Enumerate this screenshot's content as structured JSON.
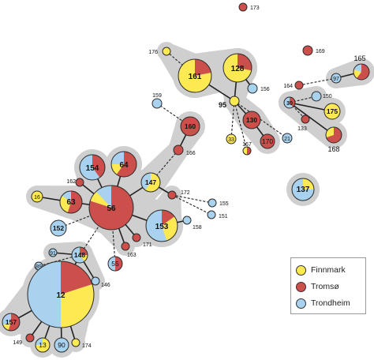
{
  "colors": {
    "finnmark": "#fde951",
    "tromso": "#cc4f4b",
    "trondheim": "#a9d2ef",
    "hull": "#cfcfcf",
    "edge": "#222222"
  },
  "legend": {
    "items": [
      {
        "key": "finnmark",
        "label": "Finnmark"
      },
      {
        "key": "tromso",
        "label": "Tromsø"
      },
      {
        "key": "trondheim",
        "label": "Trondheim"
      }
    ]
  },
  "nodes": [
    {
      "id": "173",
      "label": "173",
      "comp": {
        "tromso": 1
      }
    },
    {
      "id": "176",
      "label": "176",
      "comp": {
        "finnmark": 1
      }
    },
    {
      "id": "161",
      "label": "161",
      "comp": {
        "finnmark": 0.78,
        "tromso": 0.22
      }
    },
    {
      "id": "128",
      "label": "128",
      "comp": {
        "finnmark": 0.72,
        "tromso": 0.28
      }
    },
    {
      "id": "156",
      "label": "156",
      "comp": {
        "trondheim": 1
      }
    },
    {
      "id": "169",
      "label": "169",
      "comp": {
        "tromso": 1
      }
    },
    {
      "id": "165",
      "label": "165",
      "comp": {
        "tromso": 0.6,
        "finnmark": 0.2,
        "trondheim": 0.2
      }
    },
    {
      "id": "97",
      "label": "97",
      "comp": {
        "trondheim": 1
      }
    },
    {
      "id": "164",
      "label": "164",
      "comp": {
        "tromso": 1
      }
    },
    {
      "id": "150",
      "label": "150",
      "comp": {
        "trondheim": 1
      }
    },
    {
      "id": "30",
      "label": "30",
      "comp": {
        "tromso": 0.4,
        "trondheim": 0.6
      }
    },
    {
      "id": "175",
      "label": "175",
      "comp": {
        "finnmark": 1
      }
    },
    {
      "id": "133",
      "label": "133",
      "comp": {
        "tromso": 1
      }
    },
    {
      "id": "168",
      "label": "168",
      "comp": {
        "tromso": 0.7,
        "finnmark": 0.3
      }
    },
    {
      "id": "95",
      "label": "95",
      "comp": {
        "finnmark": 1
      }
    },
    {
      "id": "130",
      "label": "130",
      "comp": {
        "tromso": 1
      }
    },
    {
      "id": "170",
      "label": "170",
      "comp": {
        "tromso": 1
      }
    },
    {
      "id": "21",
      "label": "21",
      "comp": {
        "trondheim": 1
      }
    },
    {
      "id": "167",
      "label": "167",
      "comp": {
        "tromso": 0.5,
        "finnmark": 0.5
      }
    },
    {
      "id": "33",
      "label": "33",
      "comp": {
        "finnmark": 1
      }
    },
    {
      "id": "159",
      "label": "159",
      "comp": {
        "trondheim": 1
      }
    },
    {
      "id": "160",
      "label": "160",
      "comp": {
        "tromso": 1
      }
    },
    {
      "id": "166",
      "label": "166",
      "comp": {
        "tromso": 1
      }
    },
    {
      "id": "137",
      "label": "137",
      "comp": {
        "trondheim": 0.75,
        "finnmark": 0.25
      }
    },
    {
      "id": "154",
      "label": "154",
      "comp": {
        "tromso": 0.4,
        "trondheim": 0.6
      }
    },
    {
      "id": "64",
      "label": "64",
      "comp": {
        "tromso": 0.6,
        "trondheim": 0.25,
        "finnmark": 0.15
      }
    },
    {
      "id": "147",
      "label": "147",
      "comp": {
        "finnmark": 0.6,
        "trondheim": 0.4
      }
    },
    {
      "id": "162",
      "label": "162",
      "comp": {
        "tromso": 1
      }
    },
    {
      "id": "172",
      "label": "172",
      "comp": {
        "tromso": 1
      }
    },
    {
      "id": "155",
      "label": "155",
      "comp": {
        "trondheim": 1
      }
    },
    {
      "id": "151",
      "label": "151",
      "comp": {
        "trondheim": 1
      }
    },
    {
      "id": "158",
      "label": "158",
      "comp": {
        "trondheim": 1
      }
    },
    {
      "id": "16",
      "label": "16",
      "comp": {
        "finnmark": 1
      }
    },
    {
      "id": "63",
      "label": "63",
      "comp": {
        "tromso": 0.55,
        "finnmark": 0.3,
        "trondheim": 0.15
      }
    },
    {
      "id": "56",
      "label": "56",
      "comp": {
        "tromso": 0.8,
        "trondheim": 0.12,
        "finnmark": 0.08
      }
    },
    {
      "id": "153",
      "label": "153",
      "comp": {
        "trondheim": 0.55,
        "finnmark": 0.3,
        "tromso": 0.15
      }
    },
    {
      "id": "152",
      "label": "152",
      "comp": {
        "trondheim": 1
      }
    },
    {
      "id": "171",
      "label": "171",
      "comp": {
        "tromso": 1
      }
    },
    {
      "id": "163",
      "label": "163",
      "comp": {
        "tromso": 1
      }
    },
    {
      "id": "91",
      "label": "91",
      "comp": {
        "trondheim": 1
      }
    },
    {
      "id": "148",
      "label": "148",
      "comp": {
        "trondheim": 0.6,
        "tromso": 0.25,
        "finnmark": 0.15
      }
    },
    {
      "id": "89",
      "label": "89",
      "comp": {
        "trondheim": 1
      }
    },
    {
      "id": "55",
      "label": "55",
      "comp": {
        "trondheim": 0.5,
        "tromso": 0.5
      }
    },
    {
      "id": "146",
      "label": "146",
      "comp": {
        "trondheim": 1
      }
    },
    {
      "id": "12",
      "label": "12",
      "comp": {
        "trondheim": 0.5,
        "finnmark": 0.3,
        "tromso": 0.2
      }
    },
    {
      "id": "157",
      "label": "157",
      "comp": {
        "tromso": 0.55,
        "trondheim": 0.3,
        "finnmark": 0.15
      }
    },
    {
      "id": "149",
      "label": "149",
      "comp": {
        "tromso": 1
      }
    },
    {
      "id": "13",
      "label": "13",
      "comp": {
        "finnmark": 0.75,
        "trondheim": 0.25
      }
    },
    {
      "id": "90",
      "label": "90",
      "comp": {
        "trondheim": 1
      }
    },
    {
      "id": "174",
      "label": "174",
      "comp": {
        "finnmark": 1
      }
    }
  ],
  "edges": [
    {
      "from": "176",
      "to": "161",
      "style": "dashed"
    },
    {
      "from": "161",
      "to": "95",
      "style": "solid"
    },
    {
      "from": "128",
      "to": "95",
      "style": "solid"
    },
    {
      "from": "128",
      "to": "156",
      "style": "solid"
    },
    {
      "from": "95",
      "to": "130",
      "style": "solid"
    },
    {
      "from": "130",
      "to": "170",
      "style": "solid"
    },
    {
      "from": "95",
      "to": "21",
      "style": "dashed"
    },
    {
      "from": "95",
      "to": "33",
      "style": "dashed"
    },
    {
      "from": "95",
      "to": "167",
      "style": "dashed"
    },
    {
      "from": "165",
      "to": "97",
      "style": "solid"
    },
    {
      "from": "97",
      "to": "164",
      "style": "dashed"
    },
    {
      "from": "30",
      "to": "150",
      "style": "dashed"
    },
    {
      "from": "30",
      "to": "175",
      "style": "solid"
    },
    {
      "from": "30",
      "to": "133",
      "style": "dashed"
    },
    {
      "from": "30",
      "to": "168",
      "style": "solid"
    },
    {
      "from": "159",
      "to": "160",
      "style": "dashed"
    },
    {
      "from": "160",
      "to": "166",
      "style": "solid"
    },
    {
      "from": "166",
      "to": "147",
      "style": "dashed"
    },
    {
      "from": "56",
      "to": "147",
      "style": "solid"
    },
    {
      "from": "56",
      "to": "154",
      "style": "solid"
    },
    {
      "from": "56",
      "to": "64",
      "style": "solid"
    },
    {
      "from": "56",
      "to": "162",
      "style": "solid"
    },
    {
      "from": "56",
      "to": "63",
      "style": "solid"
    },
    {
      "from": "63",
      "to": "16",
      "style": "solid"
    },
    {
      "from": "56",
      "to": "153",
      "style": "solid"
    },
    {
      "from": "56",
      "to": "171",
      "style": "solid"
    },
    {
      "from": "56",
      "to": "163",
      "style": "solid"
    },
    {
      "from": "56",
      "to": "152",
      "style": "dashed"
    },
    {
      "from": "56",
      "to": "148",
      "style": "dashed"
    },
    {
      "from": "56",
      "to": "55",
      "style": "dashed"
    },
    {
      "from": "147",
      "to": "172",
      "style": "solid"
    },
    {
      "from": "172",
      "to": "155",
      "style": "dashed"
    },
    {
      "from": "172",
      "to": "151",
      "style": "dashed"
    },
    {
      "from": "153",
      "to": "158",
      "style": "solid"
    },
    {
      "from": "91",
      "to": "148",
      "style": "solid"
    },
    {
      "from": "148",
      "to": "89",
      "style": "dashed"
    },
    {
      "from": "148",
      "to": "146",
      "style": "solid"
    },
    {
      "from": "148",
      "to": "12",
      "style": "solid"
    },
    {
      "from": "12",
      "to": "157",
      "style": "solid"
    },
    {
      "from": "12",
      "to": "149",
      "style": "solid"
    },
    {
      "from": "12",
      "to": "13",
      "style": "solid"
    },
    {
      "from": "12",
      "to": "90",
      "style": "solid"
    },
    {
      "from": "12",
      "to": "174",
      "style": "solid"
    }
  ]
}
